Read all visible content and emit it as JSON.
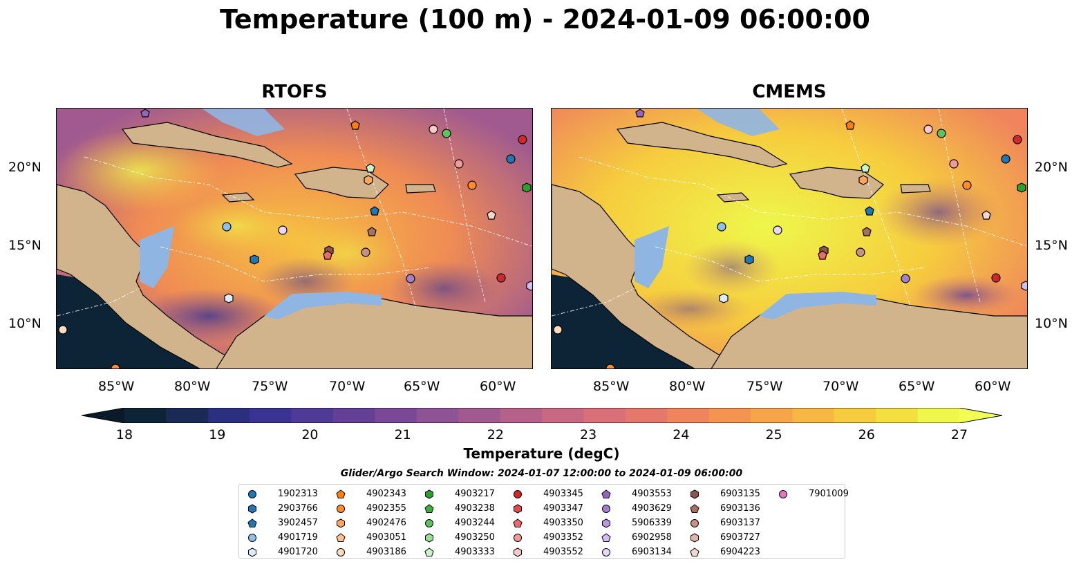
{
  "figure": {
    "title": "Temperature (100 m) - 2024-01-09 06:00:00",
    "panels": [
      {
        "title": "RTOFS"
      },
      {
        "title": "CMEMS"
      }
    ],
    "lon_ticks": [
      "85°W",
      "80°W",
      "75°W",
      "70°W",
      "65°W",
      "60°W"
    ],
    "lat_ticks": [
      "20°N",
      "15°N",
      "10°N"
    ],
    "colorbar": {
      "ticks": [
        "18",
        "19",
        "20",
        "21",
        "22",
        "23",
        "24",
        "25",
        "26",
        "27"
      ],
      "label": "Temperature (degC)",
      "colors": [
        "#0d2436",
        "#1b2a55",
        "#2b2f80",
        "#3a3394",
        "#4f3a98",
        "#643f96",
        "#7a4896",
        "#8e5394",
        "#a05a8f",
        "#b6618a",
        "#c96882",
        "#d96f78",
        "#e5786b",
        "#ef845d",
        "#f59350",
        "#f8a448",
        "#f8b742",
        "#f6cc3e",
        "#f3e03f",
        "#eef74a"
      ]
    },
    "legend": {
      "title": "Glider/Argo Search Window: 2024-01-07 12:00:00 to 2024-01-09 06:00:00",
      "items": [
        {
          "label": "1902313",
          "color": "#1f77b4",
          "marker": "circle"
        },
        {
          "label": "2903766",
          "color": "#1f77b4",
          "marker": "hexagon"
        },
        {
          "label": "3902457",
          "color": "#1f77b4",
          "marker": "pentagon"
        },
        {
          "label": "4901719",
          "color": "#8fc0e8",
          "marker": "circle"
        },
        {
          "label": "4901720",
          "color": "#dcecfa",
          "marker": "hexagon"
        },
        {
          "label": "4902343",
          "color": "#ff7f0e",
          "marker": "pentagon"
        },
        {
          "label": "4902355",
          "color": "#ff8c2a",
          "marker": "circle"
        },
        {
          "label": "4902476",
          "color": "#ffa65c",
          "marker": "hexagon"
        },
        {
          "label": "4903051",
          "color": "#ffc28e",
          "marker": "pentagon"
        },
        {
          "label": "4903186",
          "color": "#ffdcbf",
          "marker": "circle"
        },
        {
          "label": "4903217",
          "color": "#2ca02c",
          "marker": "hexagon"
        },
        {
          "label": "4903238",
          "color": "#3caf3c",
          "marker": "pentagon"
        },
        {
          "label": "4903244",
          "color": "#5cc45c",
          "marker": "circle"
        },
        {
          "label": "4903250",
          "color": "#98e098",
          "marker": "hexagon"
        },
        {
          "label": "4903333",
          "color": "#c8f5c8",
          "marker": "pentagon"
        },
        {
          "label": "4903345",
          "color": "#d62728",
          "marker": "circle"
        },
        {
          "label": "4903347",
          "color": "#e24a4a",
          "marker": "hexagon"
        },
        {
          "label": "4903350",
          "color": "#ec6a6a",
          "marker": "pentagon"
        },
        {
          "label": "4903352",
          "color": "#f29a9a",
          "marker": "circle"
        },
        {
          "label": "4903552",
          "color": "#fac8c8",
          "marker": "hexagon"
        },
        {
          "label": "4903553",
          "color": "#9467bd",
          "marker": "pentagon"
        },
        {
          "label": "4903629",
          "color": "#a47fce",
          "marker": "circle"
        },
        {
          "label": "5906339",
          "color": "#b999de",
          "marker": "hexagon"
        },
        {
          "label": "6902958",
          "color": "#d3bdf0",
          "marker": "pentagon"
        },
        {
          "label": "6903134",
          "color": "#e8d8fb",
          "marker": "circle"
        },
        {
          "label": "6903135",
          "color": "#8c564b",
          "marker": "hexagon"
        },
        {
          "label": "6903136",
          "color": "#a86f63",
          "marker": "pentagon"
        },
        {
          "label": "6903137",
          "color": "#c49184",
          "marker": "circle"
        },
        {
          "label": "6903727",
          "color": "#deb6aa",
          "marker": "hexagon"
        },
        {
          "label": "6904223",
          "color": "#f3d7cf",
          "marker": "pentagon"
        },
        {
          "label": "7901009",
          "color": "#e377c2",
          "marker": "circle"
        }
      ]
    }
  }
}
